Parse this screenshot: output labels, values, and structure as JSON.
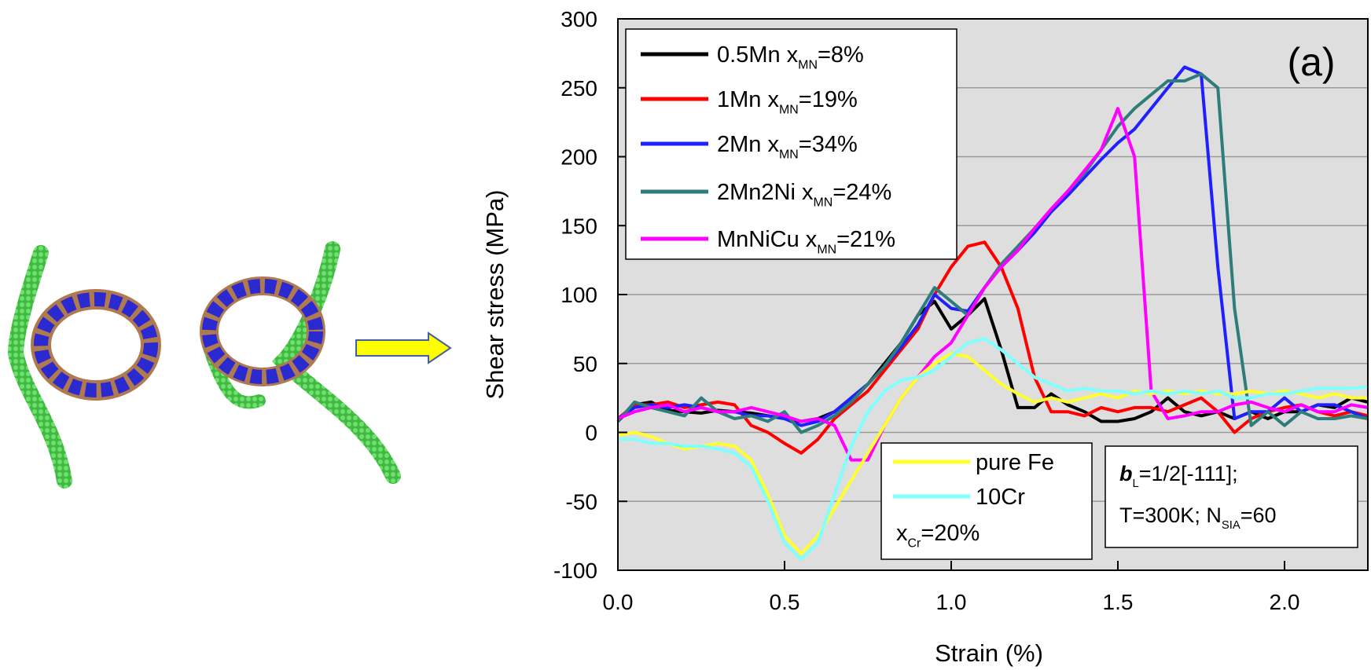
{
  "chart_data": {
    "type": "line",
    "xlabel": "Strain (%)",
    "ylabel": "Shear stress (MPa)",
    "xlim": [
      0,
      2.25
    ],
    "ylim": [
      -100,
      300
    ],
    "xticks": [
      {
        "value": 0,
        "label": "0.0"
      },
      0.5,
      {
        "value": 1,
        "label": "1.0"
      },
      1.5,
      {
        "value": 2,
        "label": "2.0"
      }
    ],
    "yticks": [
      -100,
      -50,
      0,
      50,
      100,
      150,
      200,
      250,
      300
    ],
    "grid": true,
    "panel_label": "(a)",
    "x": [
      0,
      0.05,
      0.1,
      0.15,
      0.2,
      0.25,
      0.3,
      0.35,
      0.4,
      0.45,
      0.5,
      0.55,
      0.6,
      0.65,
      0.7,
      0.75,
      0.8,
      0.85,
      0.9,
      0.95,
      1.0,
      1.05,
      1.1,
      1.15,
      1.2,
      1.25,
      1.3,
      1.35,
      1.4,
      1.45,
      1.5,
      1.55,
      1.6,
      1.65,
      1.7,
      1.75,
      1.8,
      1.85,
      1.9,
      1.95,
      2.0,
      2.05,
      2.1,
      2.15,
      2.2,
      2.25
    ],
    "series": [
      {
        "name": [
          "0.5Mn x",
          "MN",
          "=8%"
        ],
        "color": "#000000",
        "values": [
          8,
          20,
          22,
          16,
          15,
          14,
          16,
          15,
          14,
          12,
          10,
          8,
          10,
          15,
          25,
          35,
          50,
          65,
          85,
          95,
          75,
          85,
          97,
          60,
          18,
          18,
          28,
          20,
          15,
          8,
          8,
          10,
          15,
          25,
          15,
          12,
          15,
          10,
          15,
          10,
          15,
          15,
          20,
          18,
          25,
          22
        ]
      },
      {
        "name": [
          "1Mn x",
          "MN",
          "=19%"
        ],
        "color": "#ff0000",
        "values": [
          10,
          20,
          20,
          22,
          18,
          20,
          22,
          20,
          5,
          0,
          -8,
          -15,
          -5,
          10,
          20,
          30,
          45,
          60,
          75,
          100,
          120,
          135,
          138,
          120,
          90,
          40,
          15,
          15,
          12,
          18,
          15,
          18,
          18,
          15,
          20,
          25,
          15,
          0,
          10,
          15,
          18,
          20,
          15,
          12,
          15,
          12
        ]
      },
      {
        "name": [
          "2Mn x",
          "MN",
          "=34%"
        ],
        "color": "#2020ff",
        "values": [
          10,
          18,
          20,
          18,
          20,
          18,
          15,
          15,
          12,
          12,
          10,
          5,
          8,
          15,
          25,
          35,
          48,
          62,
          78,
          100,
          90,
          88,
          105,
          120,
          132,
          145,
          160,
          172,
          185,
          198,
          210,
          220,
          235,
          250,
          265,
          260,
          120,
          10,
          15,
          15,
          25,
          15,
          20,
          20,
          15,
          10
        ]
      },
      {
        "name": [
          "2Mn2Ni x",
          "MN",
          "=24%"
        ],
        "color": "#2e7d7b",
        "values": [
          8,
          22,
          18,
          15,
          12,
          25,
          15,
          10,
          12,
          8,
          15,
          0,
          5,
          12,
          22,
          35,
          48,
          65,
          85,
          105,
          95,
          85,
          105,
          122,
          135,
          148,
          162,
          175,
          188,
          205,
          222,
          235,
          245,
          255,
          255,
          260,
          250,
          90,
          5,
          15,
          5,
          15,
          10,
          10,
          12,
          10
        ]
      },
      {
        "name": [
          "MnNiCu x",
          "MN",
          "=21%"
        ],
        "color": "#ff00ff",
        "values": [
          10,
          15,
          18,
          20,
          15,
          18,
          15,
          15,
          18,
          15,
          12,
          8,
          10,
          5,
          -20,
          -20,
          5,
          25,
          40,
          55,
          65,
          85,
          105,
          120,
          132,
          148,
          162,
          175,
          190,
          205,
          235,
          200,
          30,
          10,
          12,
          15,
          15,
          20,
          22,
          18,
          15,
          20,
          15,
          15,
          20,
          18
        ]
      },
      {
        "name": [
          "pure Fe"
        ],
        "color": "#ffff30",
        "values": [
          -2,
          0,
          -3,
          -8,
          -12,
          -10,
          -8,
          -10,
          -20,
          -45,
          -75,
          -88,
          -75,
          -55,
          -35,
          -15,
          5,
          25,
          40,
          50,
          57,
          55,
          45,
          35,
          28,
          22,
          25,
          22,
          25,
          28,
          25,
          30,
          28,
          30,
          28,
          30,
          28,
          28,
          30,
          28,
          30,
          28,
          25,
          28,
          25,
          25
        ]
      },
      {
        "name": [
          "10Cr"
        ],
        "color": "#80ffff",
        "values": [
          -5,
          -5,
          -8,
          -8,
          -10,
          -10,
          -12,
          -15,
          -25,
          -50,
          -80,
          -92,
          -80,
          -45,
          -10,
          15,
          30,
          38,
          40,
          45,
          55,
          65,
          68,
          60,
          50,
          40,
          35,
          30,
          32,
          30,
          30,
          28,
          30,
          28,
          30,
          28,
          30,
          25,
          25,
          28,
          28,
          30,
          32,
          32,
          32,
          33
        ]
      }
    ],
    "legend_note": [
      "x",
      "Cr",
      "=20%"
    ],
    "info_box": [
      [
        "b",
        "L",
        "=1/2[-111];"
      ],
      [
        "T=300K; N",
        "SIA",
        "=60"
      ]
    ]
  }
}
